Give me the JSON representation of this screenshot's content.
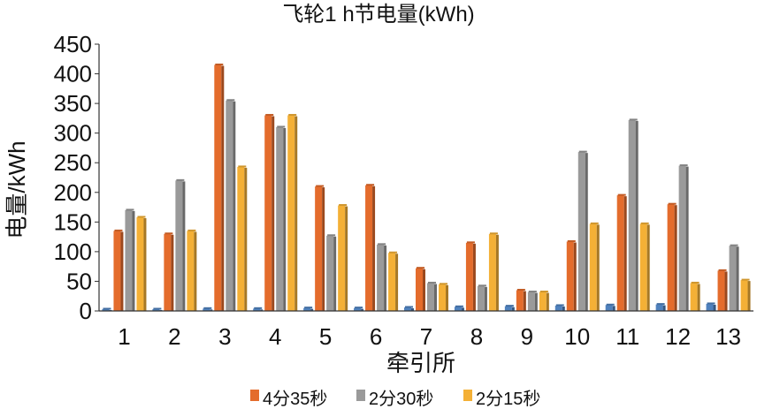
{
  "chart_data": {
    "type": "bar",
    "title": "飞轮1 h节电量(kWh)",
    "xlabel": "牵引所",
    "ylabel": "电量/kWh",
    "ylim": [
      0,
      450
    ],
    "yticks": [
      0,
      50,
      100,
      150,
      200,
      250,
      300,
      350,
      400,
      450
    ],
    "grid": false,
    "legend_position": "bottom",
    "categories": [
      "1",
      "2",
      "3",
      "4",
      "5",
      "6",
      "7",
      "8",
      "9",
      "10",
      "11",
      "12",
      "13"
    ],
    "series": [
      {
        "name": "",
        "color": "#4F81BD",
        "values": [
          3,
          3,
          4,
          4,
          5,
          5,
          6,
          7,
          8,
          9,
          10,
          11,
          12
        ]
      },
      {
        "name": "4分35秒",
        "color": "#E46C2C",
        "values": [
          135,
          130,
          415,
          330,
          210,
          212,
          72,
          115,
          35,
          117,
          195,
          180,
          68
        ]
      },
      {
        "name": "2分30秒",
        "color": "#9A9A9A",
        "values": [
          170,
          220,
          355,
          310,
          127,
          112,
          47,
          42,
          32,
          268,
          322,
          245,
          110
        ]
      },
      {
        "name": "2分15秒",
        "color": "#F4B036",
        "values": [
          158,
          135,
          243,
          330,
          178,
          98,
          45,
          130,
          32,
          147,
          147,
          47,
          52
        ]
      }
    ]
  }
}
